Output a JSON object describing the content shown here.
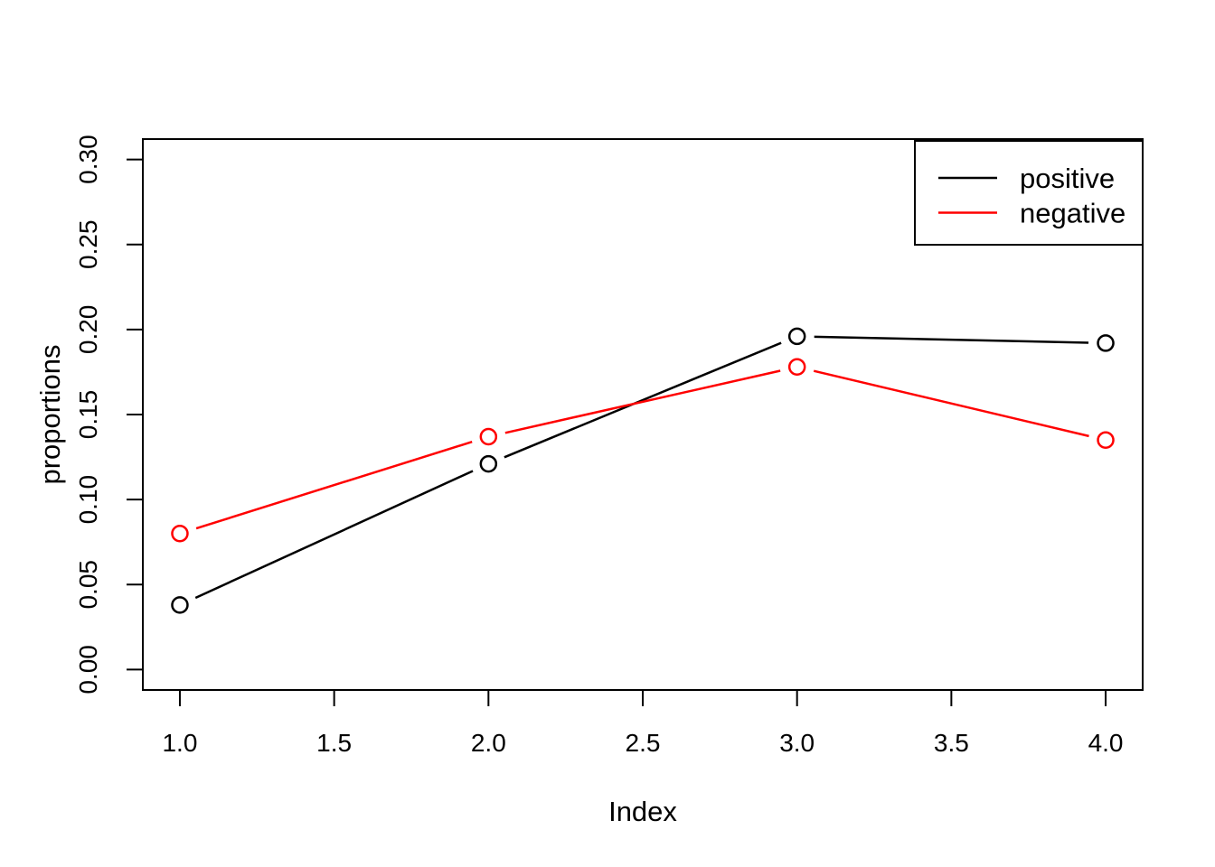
{
  "chart_data": {
    "type": "line",
    "title": "",
    "xlabel": "Index",
    "ylabel": "proportions",
    "x": [
      1,
      2,
      3,
      4
    ],
    "series": [
      {
        "name": "positive",
        "color": "#000000",
        "values": [
          0.038,
          0.121,
          0.196,
          0.192
        ]
      },
      {
        "name": "negative",
        "color": "#ff0000",
        "values": [
          0.08,
          0.137,
          0.178,
          0.135
        ]
      }
    ],
    "xlim": [
      0.88,
      4.12
    ],
    "ylim": [
      -0.012,
      0.312
    ],
    "x_ticks": [
      1.0,
      1.5,
      2.0,
      2.5,
      3.0,
      3.5,
      4.0
    ],
    "x_tick_labels": [
      "1.0",
      "1.5",
      "2.0",
      "2.5",
      "3.0",
      "3.5",
      "4.0"
    ],
    "y_ticks": [
      0.0,
      0.05,
      0.1,
      0.15,
      0.2,
      0.25,
      0.3
    ],
    "y_tick_labels": [
      "0.00",
      "0.05",
      "0.10",
      "0.15",
      "0.20",
      "0.25",
      "0.30"
    ],
    "grid": false,
    "marker": "open-circle",
    "line_style": "segments-broken-at-points",
    "plot_border": true,
    "background_color": "#ffffff",
    "axis_color": "#000000",
    "legend": {
      "position": "topright",
      "items": [
        {
          "label": "positive",
          "color": "#000000"
        },
        {
          "label": "negative",
          "color": "#ff0000"
        }
      ]
    }
  }
}
